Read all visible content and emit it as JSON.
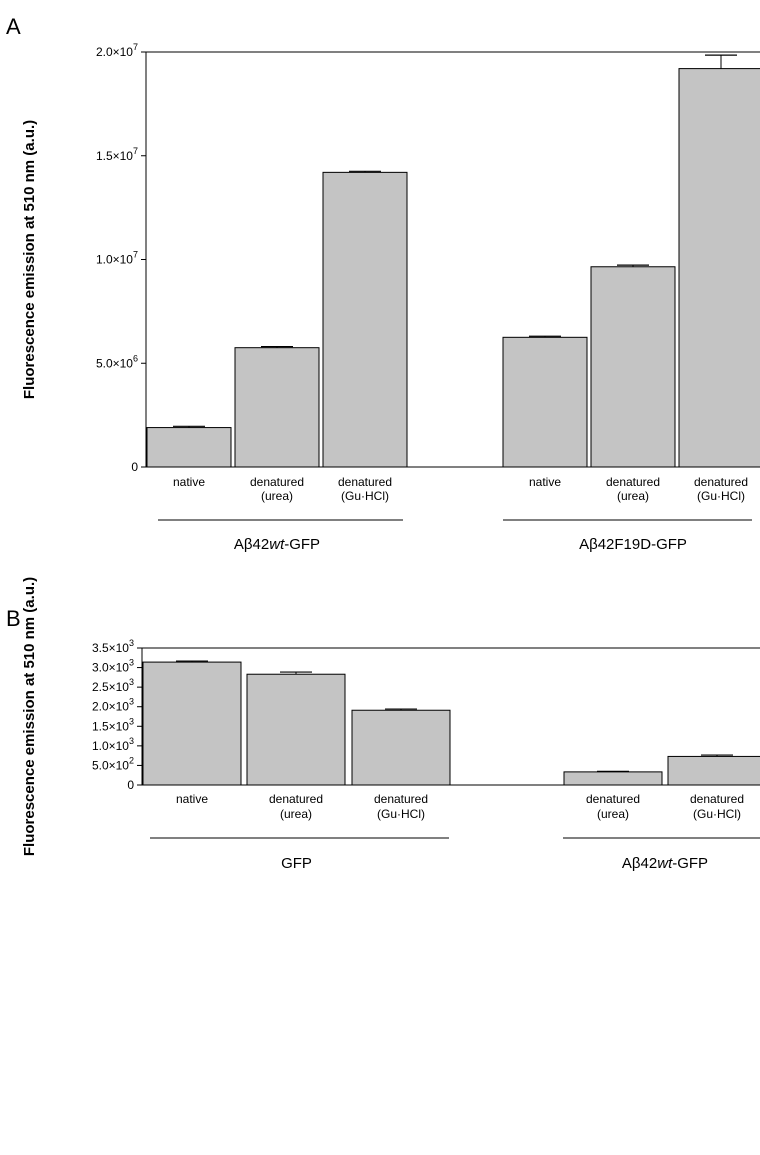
{
  "chart_data": [
    {
      "type": "bar",
      "panel_label": "A",
      "ylabel": "Fluorescence emission at 510 nm  (a.u.)",
      "ylim": [
        0,
        20000000
      ],
      "yticks": [
        {
          "value": 0,
          "base": "0",
          "exp": ""
        },
        {
          "value": 5000000,
          "base": "5.0×10",
          "exp": "6"
        },
        {
          "value": 10000000,
          "base": "1.0×10",
          "exp": "7"
        },
        {
          "value": 15000000,
          "base": "1.5×10",
          "exp": "7"
        },
        {
          "value": 20000000,
          "base": "2.0×10",
          "exp": "7"
        }
      ],
      "groups": [
        {
          "label_pre": "Aβ42",
          "label_italic": "wt",
          "label_post": "-GFP",
          "bars": [
            {
              "label1": "native",
              "label2": "",
              "value": 1900000,
              "error": 60000
            },
            {
              "label1": "denatured",
              "label2": "(urea)",
              "value": 5750000,
              "error": 50000
            },
            {
              "label1": "denatured",
              "label2": "(Gu·HCl)",
              "value": 14200000,
              "error": 50000
            }
          ]
        },
        {
          "label_pre": "Aβ42F19D-GFP",
          "label_italic": "",
          "label_post": "",
          "bars": [
            {
              "label1": "native",
              "label2": "",
              "value": 6250000,
              "error": 50000
            },
            {
              "label1": "denatured",
              "label2": "(urea)",
              "value": 9650000,
              "error": 80000
            },
            {
              "label1": "denatured",
              "label2": "(Gu·HCl)",
              "value": 19200000,
              "error": 650000
            }
          ]
        }
      ]
    },
    {
      "type": "bar",
      "panel_label": "B",
      "ylabel": "Fluorescence emission at 510 nm  (a.u.)",
      "ylim": [
        0,
        3500
      ],
      "yticks": [
        {
          "value": 0,
          "base": "0",
          "exp": ""
        },
        {
          "value": 500,
          "base": "5.0×10",
          "exp": "2"
        },
        {
          "value": 1000,
          "base": "1.0×10",
          "exp": "3"
        },
        {
          "value": 1500,
          "base": "1.5×10",
          "exp": "3"
        },
        {
          "value": 2000,
          "base": "2.0×10",
          "exp": "3"
        },
        {
          "value": 2500,
          "base": "2.5×10",
          "exp": "3"
        },
        {
          "value": 3000,
          "base": "3.0×10",
          "exp": "3"
        },
        {
          "value": 3500,
          "base": "3.5×10",
          "exp": "3"
        }
      ],
      "groups": [
        {
          "label_pre": "GFP",
          "label_italic": "",
          "label_post": "",
          "bars": [
            {
              "label1": "native",
              "label2": "",
              "value": 3140,
              "error": 25
            },
            {
              "label1": "denatured",
              "label2": "(urea)",
              "value": 2830,
              "error": 55
            },
            {
              "label1": "denatured",
              "label2": "(Gu·HCl)",
              "value": 1910,
              "error": 30
            }
          ]
        },
        {
          "label_pre": "Aβ42",
          "label_italic": "wt",
          "label_post": "-GFP",
          "bars": [
            {
              "label1": "denatured",
              "label2": "(urea)",
              "value": 335,
              "error": 15
            },
            {
              "label1": "denatured",
              "label2": "(Gu·HCl)",
              "value": 730,
              "error": 35
            }
          ]
        }
      ]
    }
  ],
  "colors": {
    "bar_fill": "#c4c4c4",
    "bar_stroke": "#000000",
    "axis": "#000000"
  }
}
